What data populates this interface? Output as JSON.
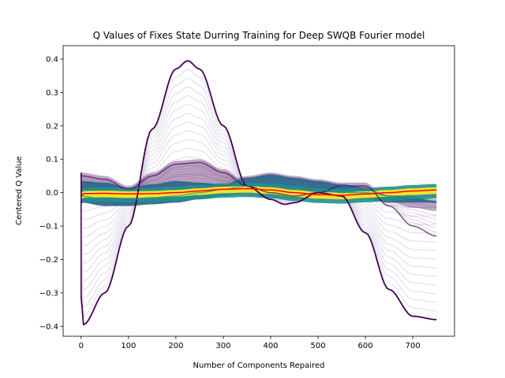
{
  "chart_data": {
    "type": "line",
    "title": "Q Values  of Fixes State Durring Training for Deep SWQB Fourier model",
    "xlabel": "Number of Components Repaired",
    "ylabel": "Centered Q Value",
    "xlim": [
      -38,
      788
    ],
    "ylim": [
      -0.43,
      0.44
    ],
    "xticks": [
      0,
      100,
      200,
      300,
      400,
      500,
      600,
      700
    ],
    "yticks": [
      -0.4,
      -0.3,
      -0.2,
      -0.1,
      0.0,
      0.1,
      0.2,
      0.3,
      0.4
    ],
    "xtick_labels": [
      "0",
      "100",
      "200",
      "300",
      "400",
      "500",
      "600",
      "700"
    ],
    "ytick_labels": [
      "−0.4",
      "−0.3",
      "−0.2",
      "−0.1",
      "0.0",
      "0.1",
      "0.2",
      "0.3",
      "0.4"
    ],
    "grid": false,
    "colormap": "viridis",
    "colors": {
      "early": "#440154",
      "mid": "#31688e",
      "teal": "#21918c",
      "late": "#fde725",
      "mean_line": "#ff0000",
      "faint": "#c8c8d8"
    },
    "series": [
      {
        "x": [
          0,
          5,
          50,
          100,
          150,
          200,
          225,
          250,
          300,
          350,
          400,
          430,
          450,
          500,
          550,
          600,
          650,
          700,
          750
        ],
        "values": [
          -0.31,
          -0.395,
          -0.3,
          -0.1,
          0.19,
          0.37,
          0.395,
          0.37,
          0.2,
          0.02,
          -0.02,
          -0.035,
          -0.03,
          0.0,
          -0.01,
          -0.12,
          -0.29,
          -0.37,
          -0.38
        ]
      },
      {
        "x": [
          0,
          50,
          100,
          150,
          200,
          250,
          300,
          350,
          400,
          450,
          500,
          550,
          600,
          650,
          700,
          750
        ],
        "values": [
          0.05,
          0.04,
          0.01,
          0.05,
          0.085,
          0.09,
          0.06,
          0.02,
          0.0,
          -0.01,
          0.0,
          0.02,
          0.02,
          -0.04,
          -0.1,
          -0.13
        ]
      },
      {
        "x": [
          0,
          50,
          100,
          150,
          200,
          250,
          300,
          350,
          400,
          450,
          500,
          550,
          600,
          650,
          700,
          750
        ],
        "values": [
          0.03,
          0.025,
          0.01,
          0.02,
          0.03,
          0.025,
          0.02,
          0.04,
          0.05,
          0.04,
          0.03,
          0.02,
          0.01,
          -0.01,
          -0.02,
          -0.03
        ]
      },
      {
        "x": [
          0,
          50,
          100,
          150,
          200,
          250,
          300,
          350,
          400,
          450,
          500,
          550,
          600,
          650,
          700,
          750
        ],
        "values": [
          -0.01,
          -0.02,
          -0.02,
          -0.015,
          -0.01,
          0.0,
          0.01,
          0.02,
          0.025,
          0.02,
          0.01,
          0.0,
          0.0,
          -0.01,
          -0.01,
          -0.01
        ]
      },
      {
        "x": [
          0,
          5,
          50,
          100,
          150,
          200,
          250,
          300,
          350,
          400,
          450,
          500,
          550,
          600,
          650,
          700,
          750
        ],
        "values": [
          -0.01,
          -0.003,
          -0.002,
          -0.004,
          -0.003,
          0.0,
          0.005,
          0.01,
          0.012,
          0.008,
          0.0,
          -0.006,
          -0.008,
          -0.004,
          0.0,
          0.005,
          0.008
        ]
      }
    ]
  }
}
